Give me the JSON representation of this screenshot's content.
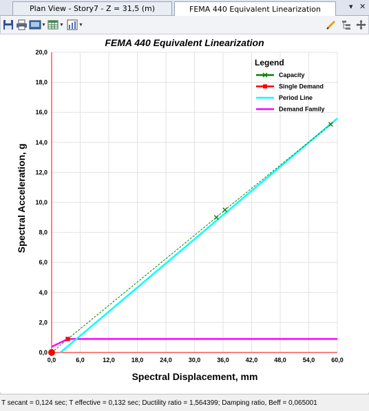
{
  "tabs": [
    {
      "label": "Plan View - Story7 - Z = 31,5 (m)"
    },
    {
      "label": "FEMA 440 Equivalent Linearization"
    }
  ],
  "tab_controls": {
    "dropdown_glyph": "▾",
    "close_glyph": "✕"
  },
  "toolbar": {
    "icons": [
      "save-icon",
      "print-icon",
      "display-options-icon",
      "table-icon",
      "chart-icon",
      "pencil-icon",
      "tree-icon",
      "move-icon"
    ]
  },
  "chart_data": {
    "type": "line",
    "title": "FEMA 440 Equivalent Linearization",
    "xlabel": "Spectral Displacement, mm",
    "ylabel": "Spectral Acceleration, g",
    "xlim": [
      0,
      60
    ],
    "ylim": [
      0,
      20
    ],
    "x_ticks": [
      "0,0",
      "6,0",
      "12,0",
      "18,0",
      "24,0",
      "30,0",
      "36,0",
      "42,0",
      "48,0",
      "54,0",
      "60,0"
    ],
    "y_ticks": [
      "0,0",
      "2,0",
      "4,0",
      "6,0",
      "8,0",
      "10,0",
      "12,0",
      "14,0",
      "16,0",
      "18,0",
      "20,0"
    ],
    "grid": true,
    "legend": {
      "title": "Legend",
      "placement": "top-right"
    },
    "series": [
      {
        "name": "Capacity",
        "color": "#008000",
        "marker": "x",
        "x": [
          0,
          3.4,
          34.6,
          36.4,
          58.6
        ],
        "y": [
          0,
          0.9,
          9.0,
          9.5,
          15.2
        ]
      },
      {
        "name": "Single Demand",
        "color": "#ff0000",
        "marker": "square",
        "x": [
          3.4
        ],
        "y": [
          0.9
        ]
      },
      {
        "name": "Period Line",
        "color": "#00ffff",
        "x": [
          0,
          60
        ],
        "y": [
          -0.5,
          15.6
        ]
      },
      {
        "name": "Demand Family",
        "color": "#ff00ff",
        "x": [
          0,
          3.4,
          60
        ],
        "y": [
          0.38,
          0.9,
          0.9
        ]
      }
    ],
    "performance_point": {
      "x": 0,
      "y": 0,
      "color": "#ff0000"
    }
  },
  "status": {
    "text": "T secant = 0,124 sec;  T effective = 0,132 sec;  Ductility ratio = 1,564399;  Damping ratio, Beff = 0,065001"
  }
}
